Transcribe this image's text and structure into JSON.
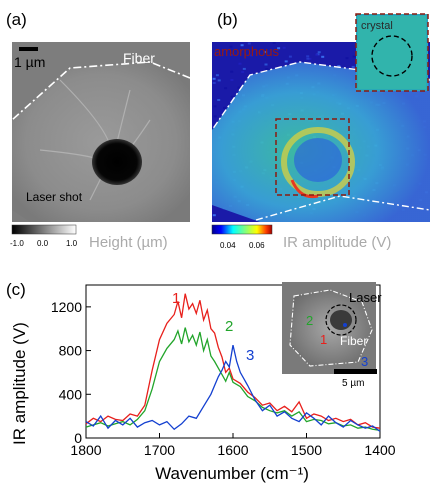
{
  "panel_a": {
    "label": "(a)",
    "scalebar": "1 µm",
    "fiber_label": "Fiber",
    "laser_label": "Laser  shot",
    "colorbar_ticks": [
      "-1.0",
      "0.0",
      "1.0"
    ],
    "colorbar_title": "Height (µm)"
  },
  "panel_b": {
    "label": "(b)",
    "inset_label": "crystal",
    "overlay_text": "amorphous",
    "colorbar_ticks": [
      "0.04",
      "0.06"
    ],
    "colorbar_title": "IR amplitude (V)"
  },
  "panel_c": {
    "label": "(c)",
    "inset": {
      "laser_label": "Laser",
      "fiber_label": "Fiber",
      "scalebar": "5 µm",
      "point_labels": [
        "1",
        "2",
        "3"
      ]
    }
  },
  "chart_data": {
    "type": "line",
    "xlabel": "Wavenumber (cm⁻¹)",
    "ylabel": "IR amplitude (V)",
    "xlim": [
      1800,
      1400
    ],
    "ylim": [
      0,
      1400
    ],
    "xticks": [
      1800,
      1700,
      1600,
      1500,
      1400
    ],
    "yticks": [
      0,
      400,
      800,
      1200
    ],
    "series": [
      {
        "name": "1",
        "color": "#e8201c",
        "x": [
          1800,
          1790,
          1780,
          1770,
          1760,
          1750,
          1740,
          1730,
          1720,
          1710,
          1700,
          1690,
          1680,
          1675,
          1670,
          1665,
          1660,
          1655,
          1650,
          1645,
          1640,
          1635,
          1630,
          1625,
          1620,
          1615,
          1610,
          1605,
          1600,
          1590,
          1580,
          1570,
          1560,
          1550,
          1540,
          1530,
          1520,
          1510,
          1500,
          1490,
          1480,
          1470,
          1460,
          1450,
          1440,
          1430,
          1420,
          1410,
          1400
        ],
        "y": [
          130,
          180,
          150,
          200,
          170,
          160,
          220,
          200,
          300,
          620,
          900,
          1050,
          1130,
          1250,
          1100,
          1320,
          1180,
          1230,
          1140,
          1260,
          1080,
          1170,
          1000,
          960,
          830,
          740,
          600,
          640,
          540,
          500,
          420,
          370,
          300,
          320,
          250,
          290,
          240,
          330,
          180,
          220,
          200,
          160,
          180,
          150,
          170,
          120,
          140,
          100,
          90
        ]
      },
      {
        "name": "2",
        "color": "#22a52b",
        "x": [
          1800,
          1790,
          1780,
          1770,
          1760,
          1750,
          1740,
          1730,
          1720,
          1710,
          1700,
          1690,
          1680,
          1675,
          1670,
          1665,
          1660,
          1655,
          1650,
          1645,
          1640,
          1635,
          1630,
          1625,
          1620,
          1615,
          1610,
          1605,
          1600,
          1590,
          1580,
          1570,
          1560,
          1550,
          1540,
          1530,
          1520,
          1510,
          1500,
          1490,
          1480,
          1470,
          1460,
          1450,
          1440,
          1430,
          1420,
          1410,
          1400
        ],
        "y": [
          100,
          120,
          140,
          110,
          130,
          150,
          120,
          170,
          250,
          450,
          700,
          820,
          900,
          980,
          860,
          1010,
          880,
          940,
          850,
          970,
          800,
          900,
          750,
          700,
          640,
          580,
          520,
          600,
          510,
          470,
          380,
          340,
          280,
          250,
          230,
          250,
          200,
          240,
          150,
          170,
          160,
          130,
          140,
          110,
          120,
          90,
          100,
          80,
          70
        ]
      },
      {
        "name": "3",
        "color": "#1440d0",
        "x": [
          1800,
          1790,
          1780,
          1770,
          1760,
          1750,
          1740,
          1730,
          1720,
          1710,
          1700,
          1690,
          1680,
          1670,
          1660,
          1650,
          1640,
          1630,
          1625,
          1620,
          1615,
          1610,
          1605,
          1600,
          1595,
          1590,
          1580,
          1570,
          1560,
          1550,
          1540,
          1530,
          1520,
          1510,
          1500,
          1490,
          1480,
          1470,
          1460,
          1450,
          1440,
          1430,
          1420,
          1410,
          1400
        ],
        "y": [
          150,
          110,
          200,
          90,
          160,
          120,
          180,
          100,
          140,
          160,
          120,
          150,
          80,
          130,
          200,
          180,
          290,
          400,
          480,
          560,
          620,
          700,
          650,
          850,
          700,
          600,
          480,
          350,
          250,
          300,
          200,
          240,
          180,
          150,
          230,
          180,
          120,
          200,
          140,
          100,
          160,
          120,
          90,
          110,
          60
        ]
      }
    ]
  }
}
